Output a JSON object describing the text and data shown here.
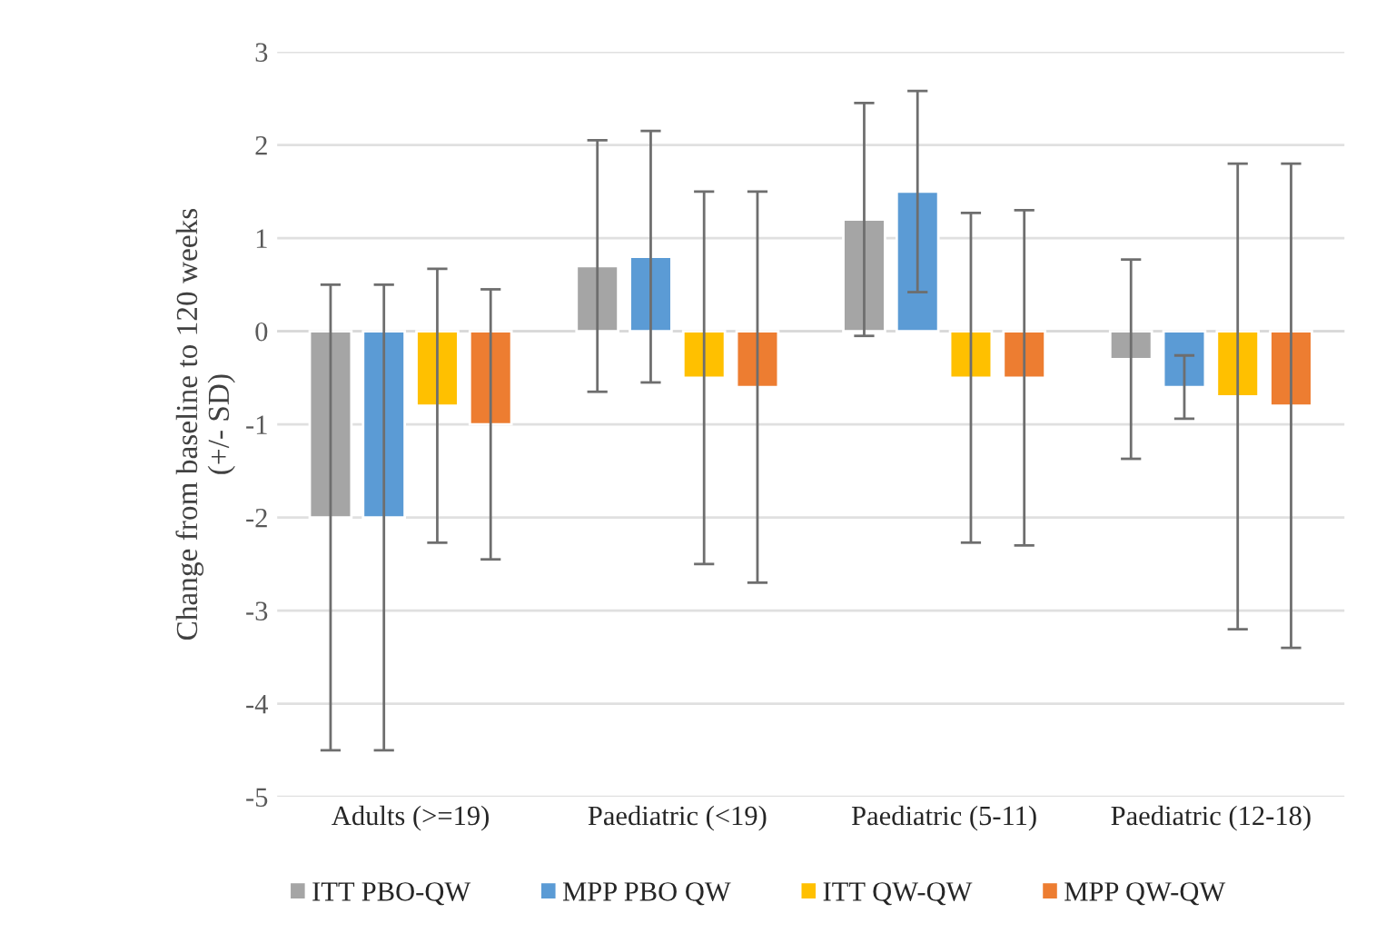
{
  "chart_data": {
    "type": "bar",
    "ylabel": "Change from baseline to 120 weeks\n(+/- SD)",
    "categories": [
      "Adults (>=19)",
      "Paediatric (<19)",
      "Paediatric (5-11)",
      "Paediatric (12-18)"
    ],
    "series": [
      {
        "name": "ITT PBO-QW",
        "color": "#a5a5a5",
        "values": [
          -2,
          0.7,
          1.2,
          -0.3
        ],
        "errors": [
          2.5,
          1.35,
          1.25,
          1.07
        ]
      },
      {
        "name": "MPP PBO QW",
        "color": "#5b9bd5",
        "values": [
          -2,
          0.8,
          1.5,
          -0.6
        ],
        "errors": [
          2.5,
          1.35,
          1.08,
          0.34
        ]
      },
      {
        "name": "ITT QW-QW",
        "color": "#ffc000",
        "values": [
          -0.8,
          -0.5,
          -0.5,
          -0.7
        ],
        "errors": [
          1.47,
          2.0,
          1.77,
          2.5
        ]
      },
      {
        "name": "MPP QW-QW",
        "color": "#ed7d31",
        "values": [
          -1.0,
          -0.6,
          -0.5,
          -0.8
        ],
        "errors": [
          1.45,
          2.1,
          1.8,
          2.6
        ]
      }
    ],
    "ylim": [
      -5,
      3
    ],
    "yticks": [
      -5,
      -4,
      -3,
      -2,
      -1,
      0,
      1,
      2,
      3
    ],
    "grid": "y",
    "legend": "bottom"
  }
}
